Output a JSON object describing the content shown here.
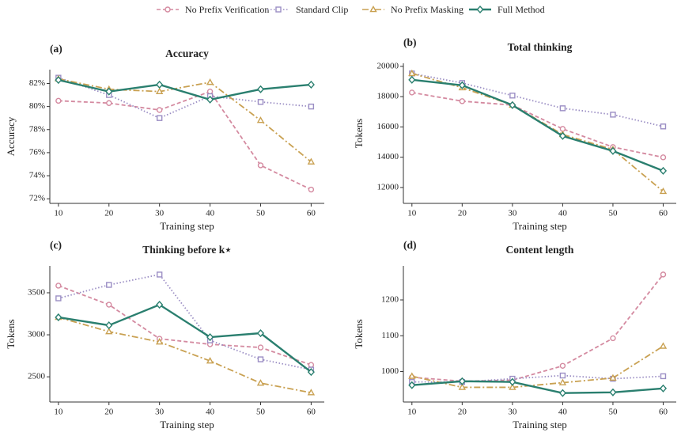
{
  "legend": [
    {
      "name": "No Prefix Verification",
      "color": "#d48aa0",
      "marker": "circle",
      "dash": "5,3"
    },
    {
      "name": "Standard Clip",
      "color": "#9b8ec4",
      "marker": "square",
      "dash": "1.5,2.5"
    },
    {
      "name": "No Prefix Masking",
      "color": "#c9a152",
      "marker": "triangle",
      "dash": "8,3,2,3"
    },
    {
      "name": "Full Method",
      "color": "#2a7f6f",
      "marker": "diamond",
      "dash": "none"
    }
  ],
  "chart_data": [
    {
      "type": "line",
      "panel": "(a)",
      "title": "Accuracy",
      "xlabel": "Training step",
      "ylabel": "Accuracy",
      "x": [
        10,
        20,
        30,
        40,
        50,
        60
      ],
      "xlim": [
        8.3,
        62.6
      ],
      "xticks": [
        10,
        20,
        30,
        40,
        50,
        60
      ],
      "ylim": [
        71.6,
        83.2
      ],
      "yticks": [
        {
          "value": 72,
          "label": "72%"
        },
        {
          "value": 74,
          "label": "74%"
        },
        {
          "value": 76,
          "label": "76%"
        },
        {
          "value": 78,
          "label": "78%"
        },
        {
          "value": 80,
          "label": "80%"
        },
        {
          "value": 82,
          "label": "82%"
        }
      ],
      "series": [
        {
          "values": [
            80.5,
            80.3,
            79.7,
            81.3,
            74.9,
            72.8
          ]
        },
        {
          "values": [
            82.5,
            81.0,
            79.0,
            80.9,
            80.4,
            80.0
          ]
        },
        {
          "values": [
            82.4,
            81.5,
            81.3,
            82.1,
            78.8,
            75.2
          ]
        },
        {
          "values": [
            82.3,
            81.3,
            81.9,
            80.6,
            81.5,
            81.9
          ]
        }
      ]
    },
    {
      "type": "line",
      "panel": "(b)",
      "title": "Total thinking",
      "xlabel": "Training step",
      "ylabel": "Tokens",
      "x": [
        10,
        20,
        30,
        40,
        50,
        60
      ],
      "xlim": [
        8.3,
        62.6
      ],
      "xticks": [
        10,
        20,
        30,
        40,
        50,
        60
      ],
      "ylim": [
        10950,
        20200
      ],
      "yticks": [
        12000,
        14000,
        16000,
        18000,
        20000
      ],
      "series": [
        {
          "values": [
            18270,
            17700,
            17440,
            15870,
            14670,
            13990
          ]
        },
        {
          "values": [
            19530,
            18900,
            18070,
            17230,
            16810,
            16030
          ]
        },
        {
          "values": [
            19530,
            18590,
            17440,
            15500,
            14510,
            11740
          ]
        },
        {
          "values": [
            19110,
            18750,
            17440,
            15400,
            14410,
            13100
          ]
        }
      ]
    },
    {
      "type": "line",
      "panel": "(c)",
      "title": "Thinking before k⋆",
      "xlabel": "Training step",
      "ylabel": "Tokens",
      "x": [
        10,
        20,
        30,
        40,
        50,
        60
      ],
      "xlim": [
        8.3,
        62.6
      ],
      "xticks": [
        10,
        20,
        30,
        40,
        50,
        60
      ],
      "ylim": [
        2200,
        3820
      ],
      "yticks": [
        2500,
        3000,
        3500
      ],
      "series": [
        {
          "values": [
            3585,
            3358,
            2953,
            2887,
            2849,
            2642
          ]
        },
        {
          "values": [
            3434,
            3594,
            3717,
            2934,
            2708,
            2585
          ]
        },
        {
          "values": [
            3208,
            3038,
            2915,
            2689,
            2425,
            2311
          ]
        },
        {
          "values": [
            3208,
            3113,
            3358,
            2972,
            3019,
            2557
          ]
        }
      ]
    },
    {
      "type": "line",
      "panel": "(d)",
      "title": "Content length",
      "xlabel": "Training step",
      "ylabel": "Tokens",
      "x": [
        10,
        20,
        30,
        40,
        50,
        60
      ],
      "xlim": [
        8.3,
        62.6
      ],
      "xticks": [
        10,
        20,
        30,
        40,
        50,
        60
      ],
      "ylim": [
        915,
        1295
      ],
      "yticks": [
        1000,
        1100,
        1200
      ],
      "series": [
        {
          "values": [
            984,
            973,
            976,
            1016,
            1093,
            1271
          ]
        },
        {
          "values": [
            971,
            971,
            980,
            989,
            980,
            987
          ]
        },
        {
          "values": [
            987,
            956,
            956,
            969,
            982,
            1071
          ]
        },
        {
          "values": [
            962,
            973,
            971,
            940,
            942,
            953
          ]
        }
      ]
    }
  ]
}
